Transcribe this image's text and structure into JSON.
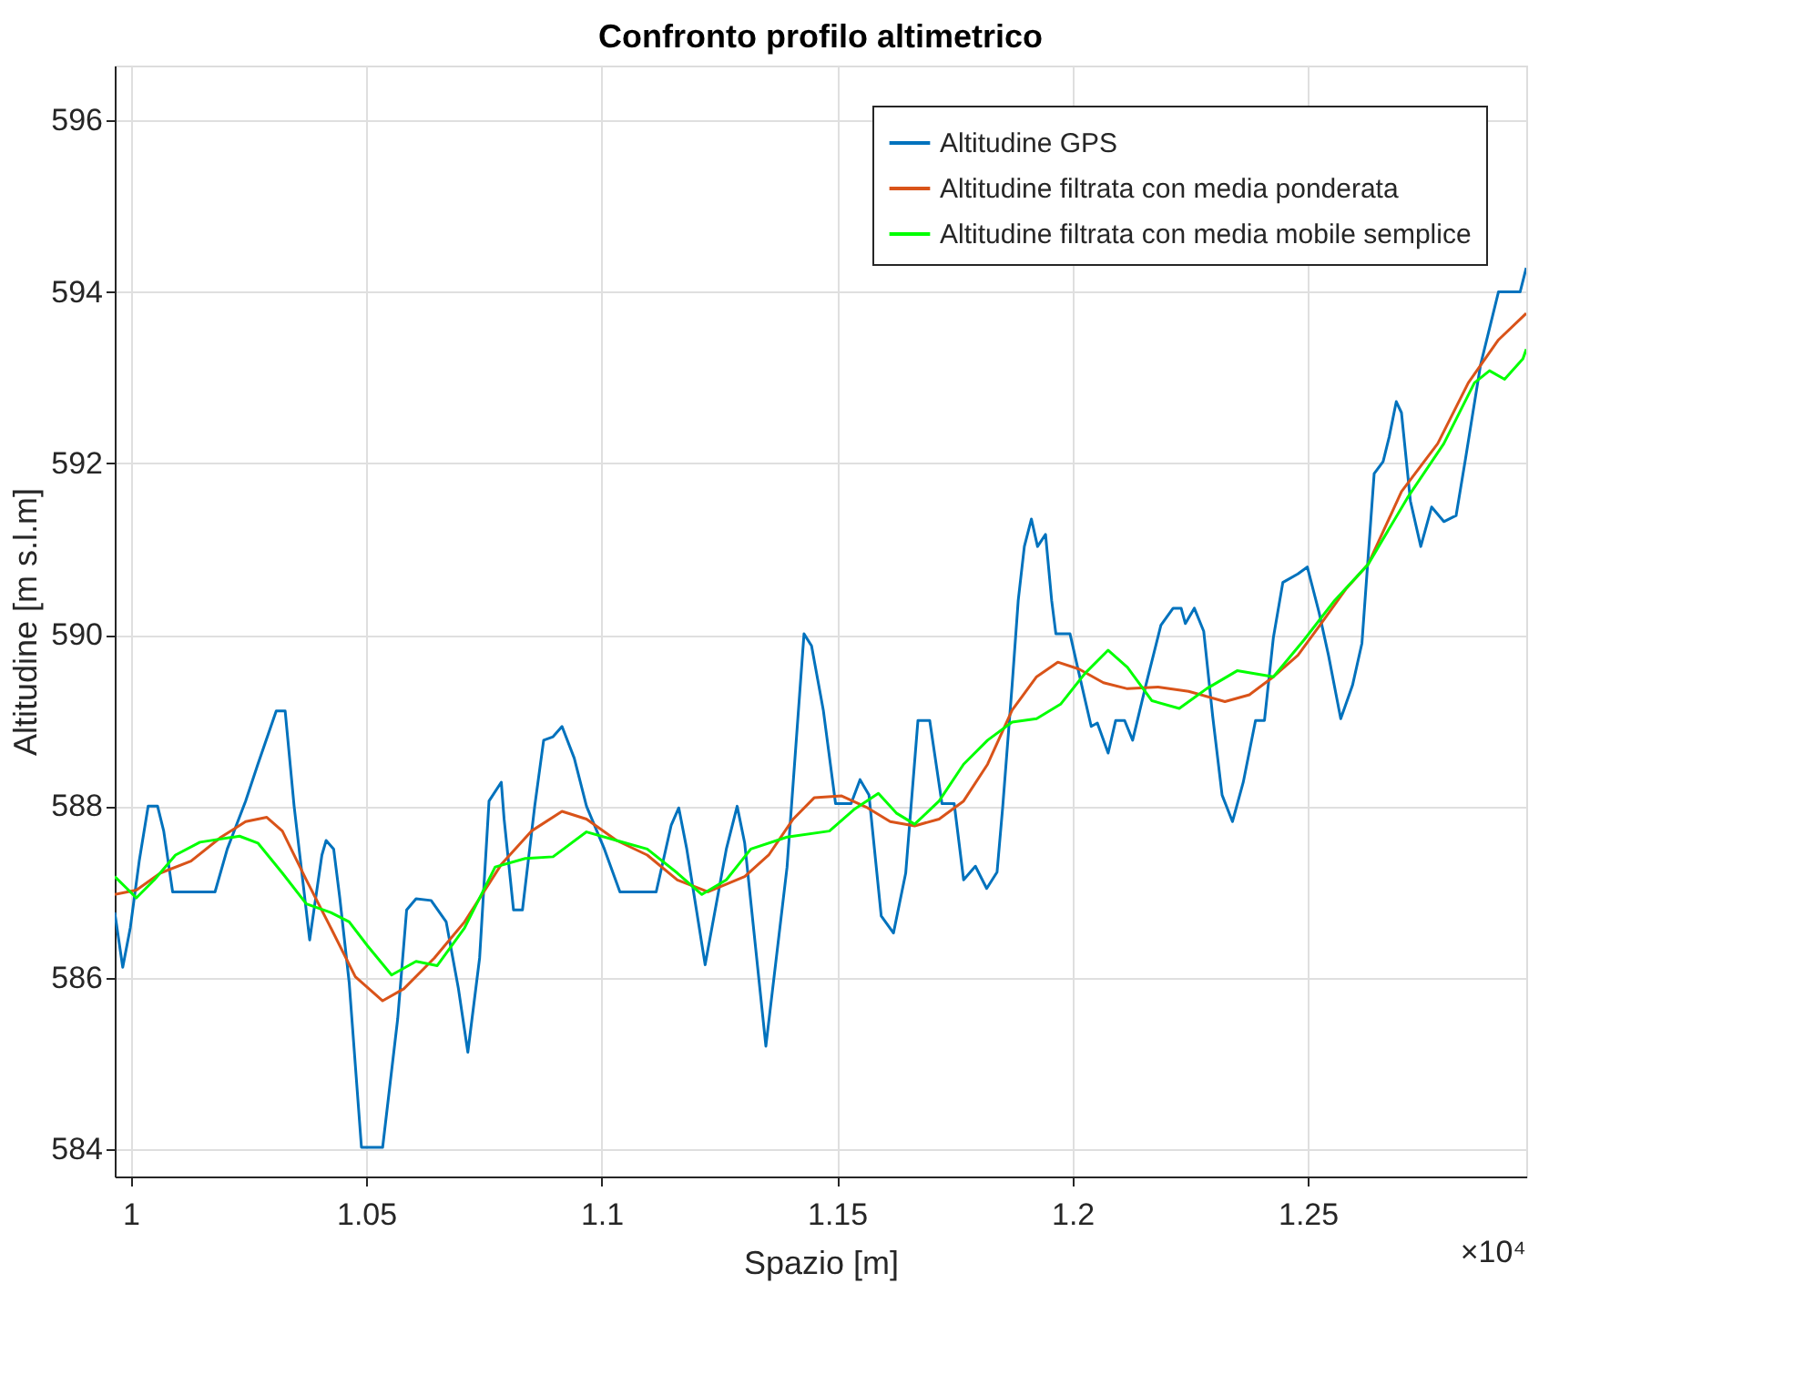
{
  "chart_data": {
    "type": "line",
    "title": "Confronto profilo altimetrico",
    "xlabel": "Spazio [m]",
    "ylabel": "Altitudine [m s.l.m]",
    "annotations": [
      "×10⁴"
    ],
    "xlim": [
      0.9966,
      1.2964
    ],
    "xticks": [
      1,
      1.05,
      1.1,
      1.15,
      1.2,
      1.25
    ],
    "ylim": [
      583.68,
      596.64
    ],
    "yticks": [
      584,
      586,
      588,
      590,
      592,
      594,
      596
    ],
    "grid": true,
    "legend": "top right",
    "marker": "none",
    "line_style": "solid",
    "series": [
      {
        "name": "Altitudine GPS",
        "color": "#0072bd",
        "x": [
          0.9966,
          0.9983,
          0.9999,
          1.0018,
          1.0037,
          1.0057,
          1.007,
          1.0089,
          1.0179,
          1.0205,
          1.0244,
          1.027,
          1.0309,
          1.0328,
          1.0347,
          1.038,
          1.0406,
          1.0415,
          1.0431,
          1.0444,
          1.0464,
          1.049,
          1.0535,
          1.0567,
          1.0586,
          1.0606,
          1.0638,
          1.067,
          1.0696,
          1.0716,
          1.0741,
          1.0761,
          1.0787,
          1.0793,
          1.0813,
          1.0832,
          1.0858,
          1.0877,
          1.0897,
          1.0916,
          1.0942,
          1.0968,
          1.1006,
          1.1039,
          1.1116,
          1.1148,
          1.1164,
          1.1181,
          1.122,
          1.1265,
          1.1288,
          1.1304,
          1.1349,
          1.1394,
          1.143,
          1.1446,
          1.1471,
          1.1497,
          1.153,
          1.1549,
          1.1568,
          1.1594,
          1.162,
          1.1646,
          1.1672,
          1.1697,
          1.1723,
          1.1749,
          1.1769,
          1.1794,
          1.1818,
          1.184,
          1.1852,
          1.1872,
          1.1885,
          1.1898,
          1.1913,
          1.1926,
          1.1943,
          1.1956,
          1.1965,
          1.1995,
          1.2014,
          1.204,
          1.2053,
          1.2076,
          1.2092,
          1.2111,
          1.2128,
          1.2156,
          1.2188,
          1.2214,
          1.2231,
          1.224,
          1.2259,
          1.2279,
          1.2298,
          1.2318,
          1.234,
          1.2363,
          1.2389,
          1.2408,
          1.2427,
          1.2447,
          1.2479,
          1.2499,
          1.2524,
          1.2544,
          1.257,
          1.2595,
          1.2615,
          1.2641,
          1.266,
          1.2673,
          1.2688,
          1.2699,
          1.2718,
          1.274,
          1.2763,
          1.2789,
          1.2815,
          1.2834,
          1.2867,
          1.2905,
          1.2951,
          1.2964
        ],
        "values": [
          586.76,
          586.12,
          586.58,
          587.36,
          588.0,
          588.0,
          587.71,
          587.0,
          587.0,
          587.5,
          588.06,
          588.49,
          589.11,
          589.11,
          588.0,
          586.44,
          587.43,
          587.6,
          587.5,
          586.93,
          585.94,
          584.02,
          584.02,
          585.52,
          586.79,
          586.92,
          586.9,
          586.65,
          585.87,
          585.13,
          586.23,
          588.06,
          588.28,
          587.85,
          586.79,
          586.79,
          588.0,
          588.77,
          588.81,
          588.93,
          588.56,
          588.0,
          587.5,
          587.0,
          587.0,
          587.78,
          587.98,
          587.5,
          586.15,
          587.5,
          588.0,
          587.57,
          585.2,
          587.29,
          590.01,
          589.87,
          589.12,
          588.03,
          588.03,
          588.31,
          588.13,
          586.72,
          586.52,
          587.22,
          589.0,
          589.0,
          588.03,
          588.03,
          587.14,
          587.3,
          587.04,
          587.23,
          587.99,
          589.41,
          590.4,
          591.03,
          591.35,
          591.03,
          591.17,
          590.4,
          590.01,
          590.01,
          589.55,
          588.93,
          588.97,
          588.62,
          589.0,
          589.0,
          588.77,
          589.41,
          590.11,
          590.31,
          590.31,
          590.13,
          590.31,
          590.04,
          589.05,
          588.13,
          587.82,
          588.28,
          589.0,
          589.0,
          589.97,
          590.61,
          590.71,
          590.79,
          590.26,
          589.76,
          589.02,
          589.41,
          589.9,
          591.88,
          592.02,
          592.31,
          592.72,
          592.59,
          591.56,
          591.03,
          591.49,
          591.32,
          591.39,
          592.02,
          593.15,
          594.0,
          594.0,
          594.28
        ]
      },
      {
        "name": "Altitudine filtrata con media ponderata",
        "color": "#d95319",
        "x": [
          0.9966,
          1.0012,
          1.0063,
          1.0128,
          1.0192,
          1.0244,
          1.0289,
          1.0322,
          1.0373,
          1.0425,
          1.0477,
          1.0535,
          1.058,
          1.0645,
          1.0709,
          1.0787,
          1.0851,
          1.0916,
          1.0968,
          1.1032,
          1.1097,
          1.1161,
          1.1226,
          1.1304,
          1.1355,
          1.1407,
          1.1452,
          1.151,
          1.1562,
          1.1613,
          1.1665,
          1.1717,
          1.1769,
          1.182,
          1.1872,
          1.1924,
          1.1969,
          1.2014,
          1.2066,
          1.2117,
          1.2182,
          1.2247,
          1.2324,
          1.2376,
          1.2427,
          1.2479,
          1.2531,
          1.2582,
          1.2628,
          1.2699,
          1.2776,
          1.2841,
          1.2905,
          1.2964
        ],
        "values": [
          586.97,
          587.02,
          587.22,
          587.36,
          587.64,
          587.82,
          587.87,
          587.71,
          587.14,
          586.58,
          586.01,
          585.73,
          585.87,
          586.23,
          586.65,
          587.32,
          587.71,
          587.94,
          587.85,
          587.6,
          587.43,
          587.14,
          587.0,
          587.18,
          587.43,
          587.85,
          588.1,
          588.12,
          587.99,
          587.82,
          587.77,
          587.85,
          588.06,
          588.49,
          589.12,
          589.51,
          589.68,
          589.6,
          589.44,
          589.37,
          589.39,
          589.34,
          589.22,
          589.3,
          589.51,
          589.76,
          590.15,
          590.54,
          590.82,
          591.67,
          592.23,
          592.94,
          593.44,
          593.75
        ]
      },
      {
        "name": "Altitudine filtrata con media mobile semplice",
        "color": "#00ff00",
        "x": [
          0.9966,
          1.0012,
          1.005,
          1.0095,
          1.0147,
          1.0231,
          1.027,
          1.0322,
          1.0373,
          1.0425,
          1.0464,
          1.0503,
          1.0554,
          1.0606,
          1.0651,
          1.0709,
          1.0774,
          1.0838,
          1.0897,
          1.0968,
          1.1032,
          1.1097,
          1.1161,
          1.1213,
          1.1265,
          1.1317,
          1.1394,
          1.1484,
          1.1536,
          1.1588,
          1.1626,
          1.1665,
          1.1717,
          1.1769,
          1.182,
          1.1872,
          1.1924,
          1.1975,
          1.2027,
          1.2076,
          1.2117,
          1.2169,
          1.2227,
          1.2285,
          1.235,
          1.2427,
          1.2492,
          1.2557,
          1.2628,
          1.2712,
          1.2789,
          1.2854,
          1.2886,
          1.2918,
          1.2957,
          1.2964
        ],
        "values": [
          587.18,
          586.93,
          587.14,
          587.43,
          587.58,
          587.65,
          587.57,
          587.22,
          586.86,
          586.76,
          586.65,
          586.37,
          586.03,
          586.19,
          586.14,
          586.58,
          587.29,
          587.39,
          587.41,
          587.7,
          587.6,
          587.5,
          587.22,
          586.97,
          587.14,
          587.5,
          587.64,
          587.71,
          587.96,
          588.15,
          587.92,
          587.79,
          588.06,
          588.49,
          588.77,
          588.98,
          589.02,
          589.19,
          589.55,
          589.82,
          589.62,
          589.23,
          589.14,
          589.37,
          589.58,
          589.51,
          589.94,
          590.4,
          590.82,
          591.6,
          592.23,
          592.94,
          593.08,
          592.98,
          593.22,
          593.33
        ]
      }
    ]
  }
}
